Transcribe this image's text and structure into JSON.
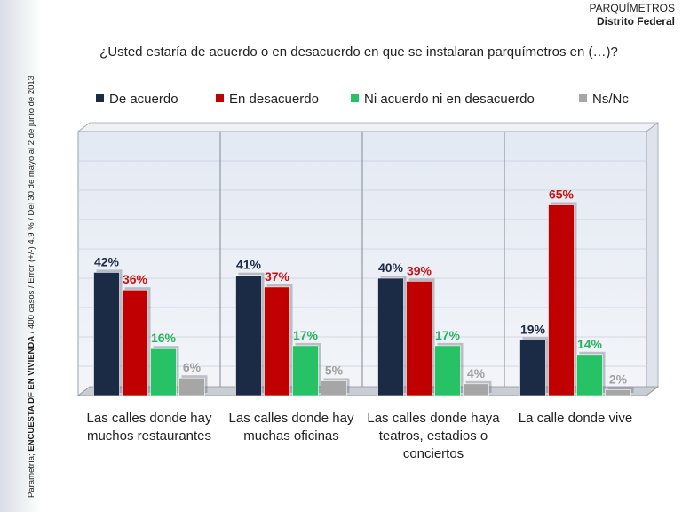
{
  "side_note": {
    "prefix": "Parametría; ",
    "bold": "ENCUESTA DF EN VIVIENDA",
    "suffix": " / 400 casos / Error (+/-) 4.9 % / Del 30 de mayo al 2  de junio de 2013"
  },
  "header": {
    "line1": "PARQUÍMETROS",
    "line2": "Distrito Federal"
  },
  "colors": {
    "series": [
      "#1b2a45",
      "#c00000",
      "#27c266",
      "#a6a6a6"
    ],
    "label": [
      "#1b2a45",
      "#d01010",
      "#27b360",
      "#a0a0a0"
    ]
  },
  "chart_data": {
    "type": "bar",
    "title": "¿Usted estaría de acuerdo o en desacuerdo en que se instalaran parquímetros en (…)?",
    "legend_position": "top",
    "categories": [
      "Las calles donde hay muchos restaurantes",
      "Las calles donde hay muchas oficinas",
      "Las calles donde haya teatros, estadios o conciertos",
      "La calle donde vive"
    ],
    "series": [
      {
        "name": "De acuerdo",
        "values": [
          42,
          41,
          40,
          19
        ],
        "labels": [
          "42%",
          "41%",
          "40%",
          "19%"
        ]
      },
      {
        "name": "En desacuerdo",
        "values": [
          36,
          37,
          39,
          65
        ],
        "labels": [
          "36%",
          "37%",
          "39%",
          "65%"
        ]
      },
      {
        "name": "Ni acuerdo ni en desacuerdo",
        "values": [
          16,
          17,
          17,
          14
        ],
        "labels": [
          "16%",
          "17%",
          "17%",
          "14%"
        ]
      },
      {
        "name": "Ns/Nc",
        "values": [
          6,
          5,
          4,
          2
        ],
        "labels": [
          "6%",
          "5%",
          "4%",
          "2%"
        ]
      }
    ],
    "ylim": [
      0,
      90
    ],
    "grid": true
  }
}
